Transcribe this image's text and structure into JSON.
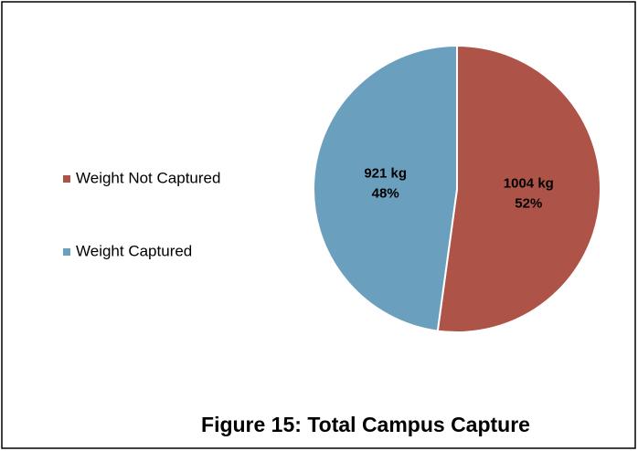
{
  "chart_data": {
    "type": "pie",
    "title": "Figure 15: Total Campus Capture",
    "categories": [
      "Weight Not Captured",
      "Weight Captured"
    ],
    "values": [
      1004,
      921
    ],
    "value_labels": [
      "1004 kg",
      "921 kg"
    ],
    "percent_labels": [
      "52%",
      "48%"
    ],
    "colors": [
      "#ae5348",
      "#6a9fbd"
    ],
    "legend": "left"
  }
}
